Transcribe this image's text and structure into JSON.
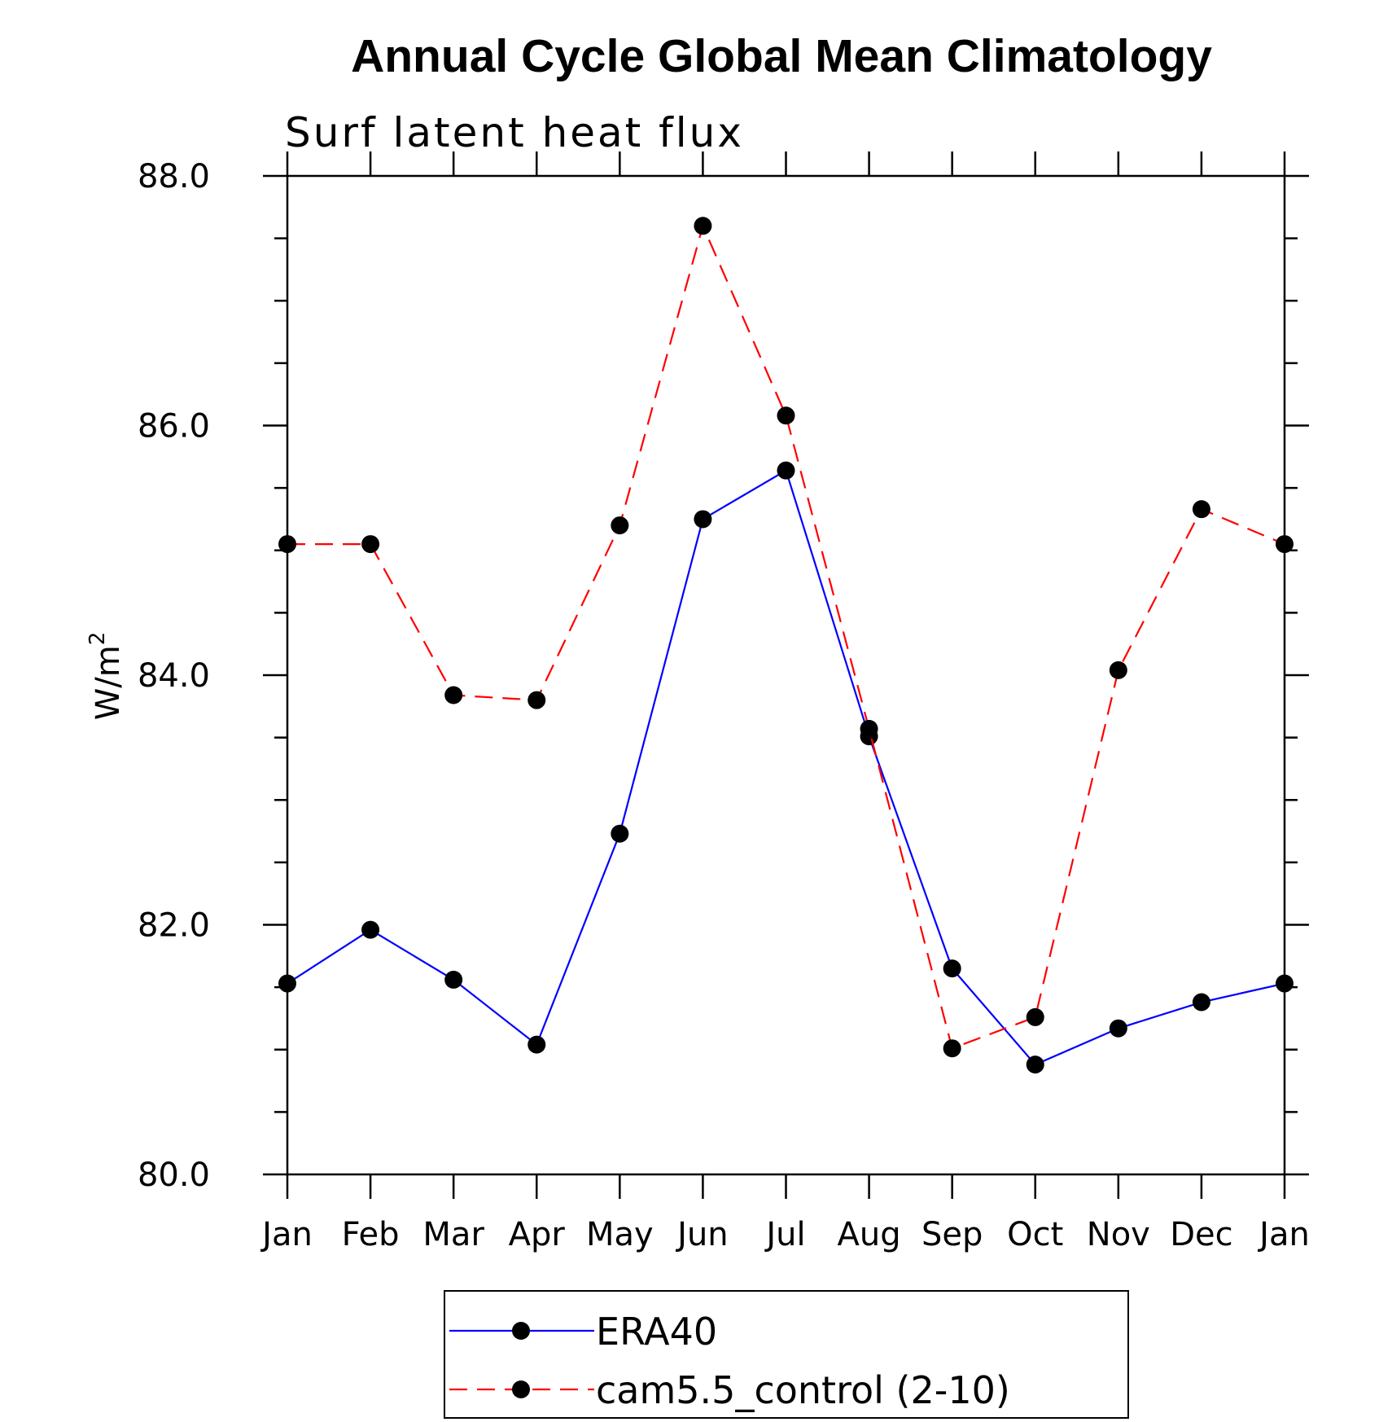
{
  "chart_data": {
    "type": "line",
    "title": "Annual Cycle Global Mean Climatology",
    "subtitle": "Surf latent heat flux",
    "ylabel": "W/m",
    "ylabel_superscript": "2",
    "xlabel": "",
    "categories": [
      "Jan",
      "Feb",
      "Mar",
      "Apr",
      "May",
      "Jun",
      "Jul",
      "Aug",
      "Sep",
      "Oct",
      "Nov",
      "Dec",
      "Jan"
    ],
    "ylim": [
      80.0,
      88.0
    ],
    "yticks": [
      "80.0",
      "82.0",
      "84.0",
      "86.0",
      "88.0"
    ],
    "ytick_values": [
      80,
      82,
      84,
      86,
      88
    ],
    "grid": false,
    "legend_position": "bottom",
    "series": [
      {
        "name": "ERA40",
        "color": "#0000ff",
        "line_style": "solid",
        "marker": "filled-circle",
        "values": [
          81.53,
          81.96,
          81.56,
          81.04,
          82.73,
          85.25,
          85.64,
          83.51,
          81.65,
          80.88,
          81.17,
          81.38,
          81.53
        ]
      },
      {
        "name": "cam5.5_control (2-10)",
        "color": "#ff0000",
        "line_style": "dashed",
        "marker": "filled-circle",
        "values": [
          85.05,
          85.05,
          83.84,
          83.8,
          85.2,
          87.6,
          86.08,
          83.57,
          81.01,
          81.26,
          84.04,
          85.33,
          85.05
        ]
      }
    ]
  }
}
